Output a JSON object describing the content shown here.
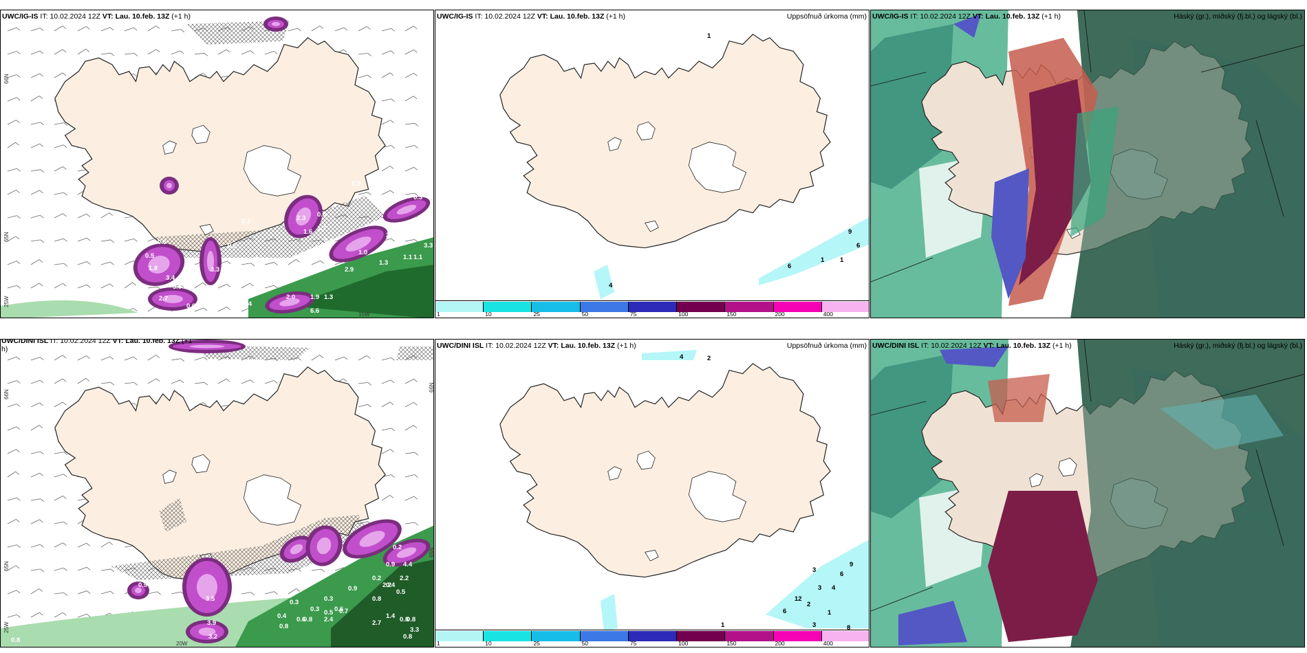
{
  "panels": [
    {
      "id": "r1c1",
      "left": true,
      "model": "UWC/IG-IS",
      "it_label": "IT:",
      "it": "10.02.2024 12Z",
      "vt_label": "VT:",
      "vt": "Lau. 10.feb. 13Z",
      "lead": "(+1 h)",
      "right_title": "",
      "grid_labels": [
        "66N",
        "65N",
        "25W",
        "15W"
      ],
      "precip_labels": [
        "0.5",
        "0.5",
        "1.8",
        "3.4",
        "3.0",
        "2.7",
        "0.6",
        "3.3",
        "0.6",
        "1.4",
        "2.3",
        "1.6",
        "0.5",
        "1.7",
        "0.8",
        "4.2",
        "4.3",
        "2.6",
        "3.3",
        "1.0",
        "1.3",
        "1.1",
        "1.1",
        "2.9",
        "2.0",
        "1.9",
        "6.6",
        "1.3",
        "0.3",
        "0.2",
        "0.2",
        "0.3",
        "0.9",
        "0.6"
      ]
    },
    {
      "id": "r1c2",
      "model": "UWC/IG-IS",
      "it_label": "IT:",
      "it": "10.02.2024 12Z",
      "vt_label": "VT:",
      "vt": "Lau. 10.feb. 13Z",
      "lead": "(+1 h)",
      "right_title": "Uppsöfnuð úrkoma (mm)",
      "legend": [
        {
          "label": "1",
          "color": "#b3f5f5"
        },
        {
          "label": "10",
          "color": "#19e3e3"
        },
        {
          "label": "25",
          "color": "#16bde7"
        },
        {
          "label": "50",
          "color": "#3c78e6"
        },
        {
          "label": "75",
          "color": "#2c2ab8"
        },
        {
          "label": "100",
          "color": "#72004f"
        },
        {
          "label": "150",
          "color": "#b3118a"
        },
        {
          "label": "200",
          "color": "#f503b5"
        },
        {
          "label": "400",
          "color": "#f7b2f0"
        }
      ],
      "point_values": [
        "1",
        "9",
        "6",
        "6",
        "1",
        "1",
        "4"
      ]
    },
    {
      "id": "r1c3",
      "model": "UWC/IG-IS",
      "it_label": "IT:",
      "it": "10.02.2024 12Z",
      "vt_label": "VT:",
      "vt": "Lau. 10.feb. 13Z",
      "lead": "(+1 h)",
      "right_title": "Háský (gr.), miðský (fj.bl.) og lágský (bl.)"
    },
    {
      "id": "r2c1",
      "left": true,
      "model": "UWC/DINI ISL",
      "it_label": "IT:",
      "it": "10.02.2024 12Z",
      "vt_label": "VT:",
      "vt": "Lau. 10.feb. 13Z",
      "lead": "(+1",
      "lead_cont": "h)",
      "right_title": "",
      "grid_labels": [
        "66N",
        "65N",
        "25W",
        "20W",
        "66N",
        "65N"
      ],
      "precip_labels": [
        "0.9",
        "0.3",
        "3.5",
        "3.9",
        "3.2",
        "0.8",
        "0.4",
        "0.6",
        "0.8",
        "2.4",
        "0.7",
        "0.3",
        "0.3",
        "0.5",
        "0.6",
        "0.9",
        "0.9",
        "0.2",
        "0.3",
        "0.8",
        "4.4",
        "2.2",
        "2.2",
        "0.2",
        "0.4",
        "0.5",
        "2.7",
        "1.4",
        "0.8",
        "3.3",
        "0.8",
        "0.8",
        "0.8"
      ]
    },
    {
      "id": "r2c2",
      "model": "UWC/DINI ISL",
      "it_label": "IT:",
      "it": "10.02.2024 12Z",
      "vt_label": "VT:",
      "vt": "Lau. 10.feb. 13Z",
      "lead": "(+1 h)",
      "right_title": "Uppsöfnuð úrkoma (mm)",
      "legend": [
        {
          "label": "1",
          "color": "#b3f5f5"
        },
        {
          "label": "10",
          "color": "#19e3e3"
        },
        {
          "label": "25",
          "color": "#16bde7"
        },
        {
          "label": "50",
          "color": "#3c78e6"
        },
        {
          "label": "75",
          "color": "#2c2ab8"
        },
        {
          "label": "100",
          "color": "#72004f"
        },
        {
          "label": "150",
          "color": "#b3118a"
        },
        {
          "label": "200",
          "color": "#f503b5"
        },
        {
          "label": "400",
          "color": "#f7b2f0"
        }
      ],
      "point_values": [
        "4",
        "2",
        "9",
        "6",
        "3",
        "3",
        "4",
        "12",
        "2",
        "6",
        "1",
        "3",
        "1",
        "8"
      ]
    },
    {
      "id": "r2c3",
      "model": "UWC/DINI ISL",
      "it_label": "IT:",
      "it": "10.02.2024 12Z",
      "vt_label": "VT:",
      "vt": "Lau. 10.feb. 13Z",
      "lead": "(+1 h)",
      "right_title": "Háský (gr.), miðský (fj.bl.) og lágský (bl.)"
    }
  ],
  "colors": {
    "land": "#fcefe2",
    "land_dark": "#efe2d4",
    "precip_purple": "#c14fcb",
    "precip_dark": "#7b2d7f",
    "precip_light": "#e6a4eb",
    "green": "#3b9a4c",
    "green_light": "#a9dcae",
    "cloud_dark": "#3f6b5a",
    "cloud_teal": "#2c6a63",
    "cloud_green": "#36a57d",
    "cloud_red": "#c75c4e",
    "cloud_maroon": "#7c1d47",
    "cloud_blue": "#5358c4",
    "light_cyan": "#b5f6f8"
  }
}
